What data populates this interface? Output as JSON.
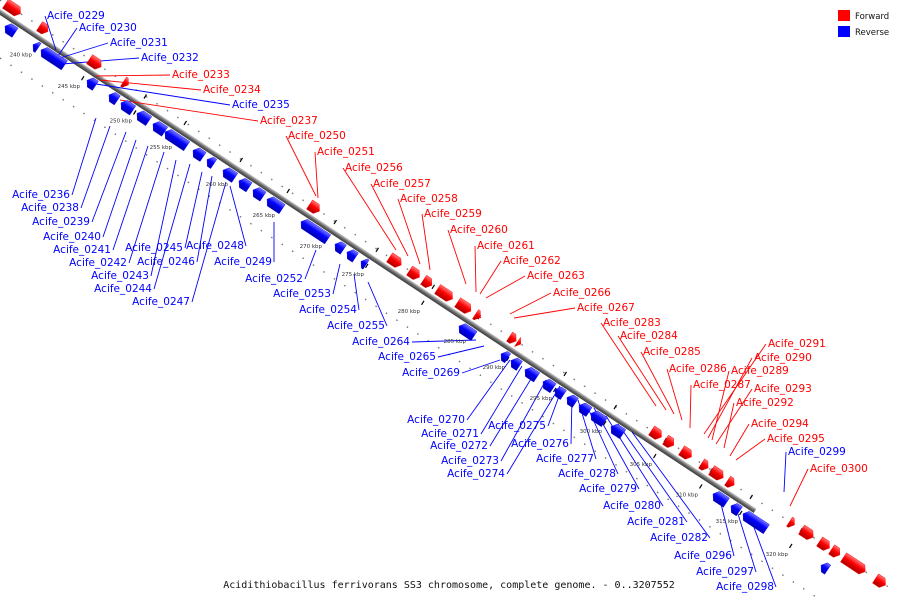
{
  "caption": "Acidithiobacillus ferrivorans SS3 chromosome, complete genome. - 0..3207552",
  "legend": [
    {
      "label": "Forward",
      "color": "#ff0000"
    },
    {
      "label": "Reverse",
      "color": "#0000ff"
    }
  ],
  "colors": {
    "forward": "#ff0000",
    "reverse": "#0000ff",
    "backbone": "#555555",
    "tick": "#000000"
  },
  "ticks": [
    "240 kbp",
    "245 kbp",
    "250 kbp",
    "255 kbp",
    "260 kbp",
    "265 kbp",
    "270 kbp",
    "275 kbp",
    "280 kbp",
    "285 kbp",
    "290 kbp",
    "295 kbp",
    "300 kbp",
    "305 kbp",
    "310 kbp",
    "315 kbp",
    "320 kbp"
  ],
  "genes": [
    {
      "name": "Acife_0229",
      "strand": "reverse"
    },
    {
      "name": "Acife_0230",
      "strand": "reverse"
    },
    {
      "name": "Acife_0231",
      "strand": "reverse"
    },
    {
      "name": "Acife_0232",
      "strand": "reverse"
    },
    {
      "name": "Acife_0233",
      "strand": "forward"
    },
    {
      "name": "Acife_0234",
      "strand": "forward"
    },
    {
      "name": "Acife_0235",
      "strand": "reverse"
    },
    {
      "name": "Acife_0237",
      "strand": "forward"
    },
    {
      "name": "Acife_0250",
      "strand": "forward"
    },
    {
      "name": "Acife_0251",
      "strand": "forward"
    },
    {
      "name": "Acife_0256",
      "strand": "forward"
    },
    {
      "name": "Acife_0257",
      "strand": "forward"
    },
    {
      "name": "Acife_0258",
      "strand": "forward"
    },
    {
      "name": "Acife_0259",
      "strand": "forward"
    },
    {
      "name": "Acife_0260",
      "strand": "forward"
    },
    {
      "name": "Acife_0261",
      "strand": "forward"
    },
    {
      "name": "Acife_0262",
      "strand": "forward"
    },
    {
      "name": "Acife_0263",
      "strand": "forward"
    },
    {
      "name": "Acife_0266",
      "strand": "forward"
    },
    {
      "name": "Acife_0267",
      "strand": "forward"
    },
    {
      "name": "Acife_0283",
      "strand": "forward"
    },
    {
      "name": "Acife_0284",
      "strand": "forward"
    },
    {
      "name": "Acife_0285",
      "strand": "forward"
    },
    {
      "name": "Acife_0286",
      "strand": "forward"
    },
    {
      "name": "Acife_0287",
      "strand": "forward"
    },
    {
      "name": "Acife_0291",
      "strand": "forward"
    },
    {
      "name": "Acife_0290",
      "strand": "forward"
    },
    {
      "name": "Acife_0289",
      "strand": "forward"
    },
    {
      "name": "Acife_0293",
      "strand": "forward"
    },
    {
      "name": "Acife_0292",
      "strand": "forward"
    },
    {
      "name": "Acife_0294",
      "strand": "forward"
    },
    {
      "name": "Acife_0295",
      "strand": "forward"
    },
    {
      "name": "Acife_0299",
      "strand": "reverse"
    },
    {
      "name": "Acife_0300",
      "strand": "forward"
    },
    {
      "name": "Acife_0236",
      "strand": "reverse"
    },
    {
      "name": "Acife_0238",
      "strand": "reverse"
    },
    {
      "name": "Acife_0239",
      "strand": "reverse"
    },
    {
      "name": "Acife_0240",
      "strand": "reverse"
    },
    {
      "name": "Acife_0241",
      "strand": "reverse"
    },
    {
      "name": "Acife_0242",
      "strand": "reverse"
    },
    {
      "name": "Acife_0243",
      "strand": "reverse"
    },
    {
      "name": "Acife_0244",
      "strand": "reverse"
    },
    {
      "name": "Acife_0245",
      "strand": "reverse"
    },
    {
      "name": "Acife_0246",
      "strand": "reverse"
    },
    {
      "name": "Acife_0247",
      "strand": "reverse"
    },
    {
      "name": "Acife_0248",
      "strand": "reverse"
    },
    {
      "name": "Acife_0249",
      "strand": "reverse"
    },
    {
      "name": "Acife_0252",
      "strand": "reverse"
    },
    {
      "name": "Acife_0253",
      "strand": "reverse"
    },
    {
      "name": "Acife_0254",
      "strand": "reverse"
    },
    {
      "name": "Acife_0255",
      "strand": "reverse"
    },
    {
      "name": "Acife_0264",
      "strand": "reverse"
    },
    {
      "name": "Acife_0265",
      "strand": "reverse"
    },
    {
      "name": "Acife_0269",
      "strand": "reverse"
    },
    {
      "name": "Acife_0270",
      "strand": "reverse"
    },
    {
      "name": "Acife_0271",
      "strand": "reverse"
    },
    {
      "name": "Acife_0272",
      "strand": "reverse"
    },
    {
      "name": "Acife_0273",
      "strand": "reverse"
    },
    {
      "name": "Acife_0274",
      "strand": "reverse"
    },
    {
      "name": "Acife_0275",
      "strand": "reverse"
    },
    {
      "name": "Acife_0276",
      "strand": "reverse"
    },
    {
      "name": "Acife_0277",
      "strand": "reverse"
    },
    {
      "name": "Acife_0278",
      "strand": "reverse"
    },
    {
      "name": "Acife_0279",
      "strand": "reverse"
    },
    {
      "name": "Acife_0280",
      "strand": "reverse"
    },
    {
      "name": "Acife_0281",
      "strand": "reverse"
    },
    {
      "name": "Acife_0282",
      "strand": "reverse"
    },
    {
      "name": "Acife_0296",
      "strand": "reverse"
    },
    {
      "name": "Acife_0297",
      "strand": "reverse"
    },
    {
      "name": "Acife_0298",
      "strand": "reverse"
    }
  ]
}
